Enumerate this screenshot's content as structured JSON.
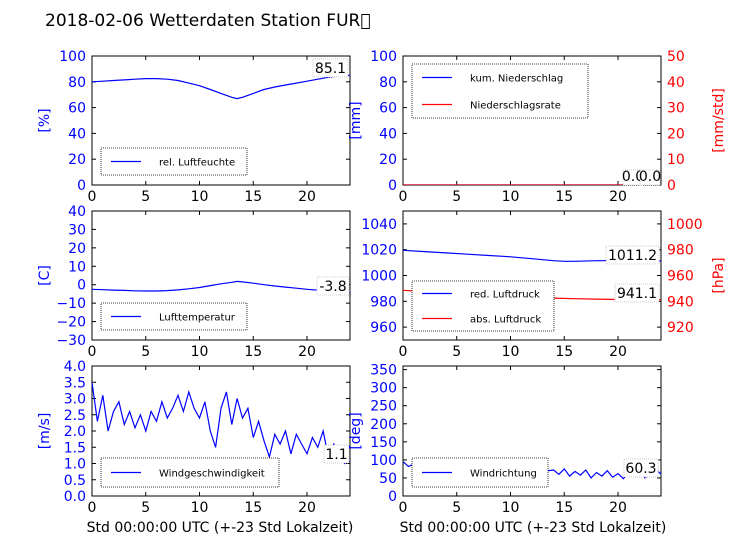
{
  "figure_title": "2018-02-06 Wetterdaten Station FUR\u0000",
  "shared_xlabel": "Std 00:00:00 UTC (+-23 Std Lokalzeit)",
  "colors": {
    "blue": "#0000ff",
    "red": "#ff0000",
    "black": "#000000"
  },
  "chart_data": [
    {
      "id": "p0",
      "type": "line",
      "ylabel": "[%]",
      "xlim": [
        0,
        24
      ],
      "ylim": [
        0,
        100
      ],
      "xticks": [
        "0",
        "5",
        "10",
        "15",
        "20"
      ],
      "yticks": [
        "0",
        "20",
        "40",
        "60",
        "80",
        "100"
      ],
      "annotation": "85.1",
      "legend_position": "lower-left",
      "series": [
        {
          "name": "rel. Luftfeuchte",
          "color": "#0000ff",
          "axis": "left",
          "x": [
            0,
            1,
            2,
            3,
            4,
            5,
            6,
            7,
            8,
            9,
            10,
            11,
            12,
            13,
            13.5,
            14,
            15,
            16,
            17,
            18,
            19,
            20,
            21,
            22,
            23,
            24
          ],
          "y": [
            80,
            80.5,
            81,
            81.5,
            82,
            82.5,
            82.5,
            82,
            81,
            79,
            77,
            74,
            71,
            68,
            67,
            68,
            71,
            74,
            76,
            77.5,
            79,
            80.5,
            82,
            83.5,
            84.5,
            85.1
          ]
        }
      ]
    },
    {
      "id": "p1",
      "type": "line",
      "ylabel": "[mm]",
      "ylabel_right": "[mm/std]",
      "xlim": [
        0,
        24
      ],
      "ylim": [
        0,
        100
      ],
      "ylim_right": [
        0,
        50
      ],
      "xticks": [
        "0",
        "5",
        "10",
        "15",
        "20"
      ],
      "yticks": [
        "0",
        "20",
        "40",
        "60",
        "80",
        "100"
      ],
      "yticks_right": [
        "0",
        "10",
        "20",
        "30",
        "40",
        "50"
      ],
      "annotation": "0.0",
      "annotation2": "0.0",
      "legend_position": "upper-left",
      "series": [
        {
          "name": "kum. Niederschlag",
          "color": "#0000ff",
          "axis": "left",
          "x": [
            0,
            24
          ],
          "y": [
            0,
            0
          ]
        },
        {
          "name": "Niederschlagsrate",
          "color": "#ff0000",
          "axis": "right",
          "x": [
            0,
            24
          ],
          "y": [
            0,
            0
          ]
        }
      ]
    },
    {
      "id": "p2",
      "type": "line",
      "ylabel": "[C]",
      "xlim": [
        0,
        24
      ],
      "ylim": [
        -30,
        40
      ],
      "xticks": [
        "0",
        "5",
        "10",
        "15",
        "20"
      ],
      "yticks": [
        "−30",
        "−20",
        "−10",
        "0",
        "10",
        "20",
        "30",
        "40"
      ],
      "annotation": "-3.8",
      "legend_position": "lower-left",
      "series": [
        {
          "name": "Lufttemperatur",
          "color": "#0000ff",
          "axis": "left",
          "x": [
            0,
            1,
            2,
            3,
            4,
            5,
            6,
            7,
            8,
            9,
            10,
            11,
            12,
            13,
            13.5,
            14,
            15,
            16,
            17,
            18,
            19,
            20,
            21,
            22,
            23,
            24
          ],
          "y": [
            -2.5,
            -2.7,
            -2.9,
            -3.1,
            -3.3,
            -3.4,
            -3.4,
            -3.2,
            -2.8,
            -2.2,
            -1.5,
            -0.5,
            0.5,
            1.3,
            1.8,
            1.5,
            0.8,
            0,
            -0.7,
            -1.3,
            -1.9,
            -2.5,
            -3,
            -3.4,
            -3.7,
            -3.8
          ]
        }
      ]
    },
    {
      "id": "p3",
      "type": "line",
      "ylabel": "",
      "ylabel_right": "[hPa]",
      "xlim": [
        0,
        24
      ],
      "ylim": [
        950,
        1050
      ],
      "ylim_right": [
        910,
        1010
      ],
      "xticks": [
        "0",
        "5",
        "10",
        "15",
        "20"
      ],
      "yticks": [
        "960",
        "980",
        "1000",
        "1020",
        "1040"
      ],
      "yticks_right": [
        "920",
        "940",
        "960",
        "980",
        "1000"
      ],
      "annotation": "1011.2",
      "annotation2": "941.1",
      "legend_position": "lower-left",
      "series": [
        {
          "name": "red. Luftdruck",
          "color": "#0000ff",
          "axis": "left",
          "x": [
            0,
            2,
            4,
            6,
            8,
            10,
            12,
            14,
            15,
            16,
            18,
            20,
            22,
            24
          ],
          "y": [
            1019.5,
            1018.5,
            1017.5,
            1016.5,
            1015.5,
            1014.5,
            1013,
            1011.5,
            1011,
            1011,
            1011.5,
            1011.5,
            1011.3,
            1011.2
          ]
        },
        {
          "name": "abs. Luftdruck",
          "color": "#ff0000",
          "axis": "right",
          "x": [
            0,
            2,
            4,
            6,
            8,
            10,
            12,
            14,
            16,
            18,
            20,
            22,
            24
          ],
          "y": [
            948.5,
            947.5,
            946.5,
            945.5,
            944.5,
            943.8,
            943,
            942.5,
            942,
            941.7,
            941.4,
            941.2,
            941.1
          ]
        }
      ]
    },
    {
      "id": "p4",
      "type": "line",
      "ylabel": "[m/s]",
      "xlim": [
        0,
        24
      ],
      "ylim": [
        0,
        4
      ],
      "xticks": [
        "0",
        "5",
        "10",
        "15",
        "20"
      ],
      "yticks": [
        "0.0",
        "0.5",
        "1.0",
        "1.5",
        "2.0",
        "2.5",
        "3.0",
        "3.5",
        "4.0"
      ],
      "annotation": "1.1",
      "legend_position": "lower-left",
      "series": [
        {
          "name": "Windgeschwindigkeit",
          "color": "#0000ff",
          "axis": "left",
          "x": [
            0,
            0.5,
            1,
            1.5,
            2,
            2.5,
            3,
            3.5,
            4,
            4.5,
            5,
            5.5,
            6,
            6.5,
            7,
            7.5,
            8,
            8.5,
            9,
            9.5,
            10,
            10.5,
            11,
            11.5,
            12,
            12.5,
            13,
            13.5,
            14,
            14.5,
            15,
            15.5,
            16,
            16.5,
            17,
            17.5,
            18,
            18.5,
            19,
            19.5,
            20,
            20.5,
            21,
            21.5,
            22,
            22.5,
            23,
            23.5,
            24
          ],
          "y": [
            3.5,
            2.3,
            3.1,
            2.0,
            2.6,
            2.9,
            2.2,
            2.6,
            2.1,
            2.5,
            2.0,
            2.6,
            2.3,
            2.9,
            2.4,
            2.7,
            3.1,
            2.6,
            3.2,
            2.7,
            2.4,
            2.9,
            2.0,
            1.5,
            2.7,
            3.2,
            2.2,
            3.0,
            2.4,
            2.7,
            1.8,
            2.3,
            1.7,
            1.2,
            1.9,
            1.6,
            2.0,
            1.3,
            1.9,
            1.6,
            1.3,
            1.8,
            1.5,
            2.0,
            1.2,
            1.6,
            1.3,
            1.0,
            1.1
          ]
        }
      ]
    },
    {
      "id": "p5",
      "type": "line",
      "ylabel": "[deg]",
      "xlim": [
        0,
        24
      ],
      "ylim": [
        0,
        360
      ],
      "xticks": [
        "0",
        "5",
        "10",
        "15",
        "20"
      ],
      "yticks": [
        "0",
        "50",
        "100",
        "150",
        "200",
        "250",
        "300",
        "350"
      ],
      "annotation": "60.3",
      "legend_position": "lower-left",
      "series": [
        {
          "name": "Windrichtung",
          "color": "#0000ff",
          "axis": "left",
          "x": [
            0,
            0.5,
            1,
            1.5,
            2,
            2.5,
            3,
            3.5,
            4,
            4.5,
            5,
            5.5,
            6,
            6.5,
            7,
            7.5,
            8,
            8.5,
            9,
            9.5,
            10,
            10.5,
            11,
            11.5,
            12,
            12.5,
            13,
            13.5,
            14,
            14.5,
            15,
            15.5,
            16,
            16.5,
            17,
            17.5,
            18,
            18.5,
            19,
            19.5,
            20,
            20.5,
            21,
            21.5,
            22,
            22.5,
            23,
            23.5,
            24
          ],
          "y": [
            95,
            82,
            88,
            74,
            96,
            85,
            70,
            92,
            80,
            98,
            87,
            75,
            95,
            84,
            100,
            78,
            92,
            72,
            88,
            96,
            80,
            90,
            74,
            94,
            85,
            78,
            92,
            70,
            72,
            60,
            75,
            55,
            68,
            58,
            72,
            50,
            65,
            55,
            70,
            52,
            62,
            48,
            68,
            55,
            70,
            50,
            62,
            75,
            60.3
          ]
        }
      ]
    }
  ]
}
